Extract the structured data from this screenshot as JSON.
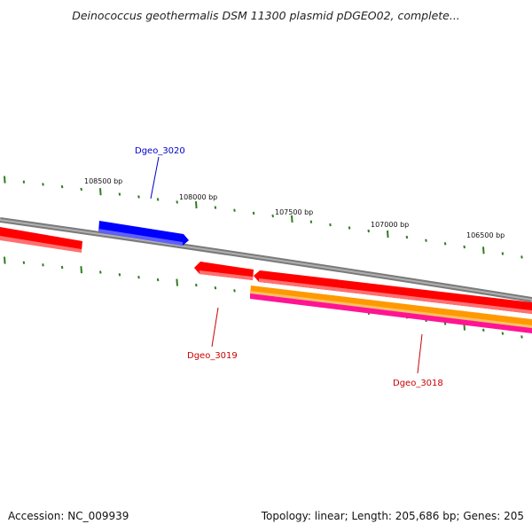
{
  "title": "Deinococcus geothermalis DSM 11300 plasmid pDGEO02, complete...",
  "footer": {
    "accession": "Accession: NC_009939",
    "summary": "Topology: linear; Length: 205,686 bp; Genes: 205"
  },
  "scale_labels": [
    "108500 bp",
    "108000 bp",
    "107500 bp",
    "107000 bp",
    "106500 bp"
  ],
  "gene_labels": {
    "top": "Dgeo_3020",
    "bottom_left": "Dgeo_3019",
    "bottom_right": "Dgeo_3018"
  },
  "colors": {
    "backbone": "#8a8a8a",
    "tick": "#2e7d1f",
    "gene_red": "#ff0000",
    "gene_blue": "#0000ff",
    "gene_orange": "#ff9900",
    "gene_pink": "#ff1493",
    "label_blue": "#0000cc",
    "label_red": "#cc0000"
  }
}
